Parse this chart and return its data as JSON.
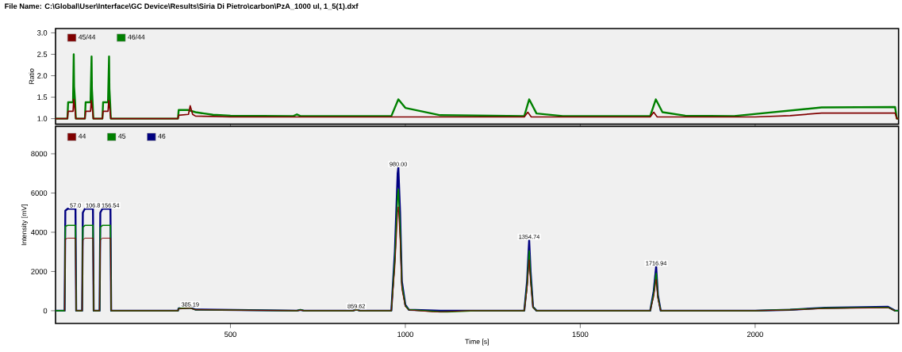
{
  "chart_data": [
    {
      "type": "line",
      "title": "File Name: C:\\Global\\User\\Interface\\GC Device\\Results\\Siria Di Pietro\\carbon\\PzA_1000 ul, 1_5(1).dxf",
      "ylabel": "Ratio",
      "xlim": [
        0,
        2410
      ],
      "xticks": [
        500,
        1000,
        1500,
        2000
      ],
      "ylim": [
        0.87,
        3.1
      ],
      "yticks": [
        {
          "value": 1,
          "label": "1.0"
        },
        {
          "value": 1.5,
          "label": "1.5"
        },
        {
          "value": 2,
          "label": "2.0"
        },
        {
          "value": 2.5,
          "label": "2.5"
        },
        {
          "value": 3,
          "label": "3.0"
        }
      ],
      "tick_labels": "y",
      "legend": "top left",
      "grid": false,
      "series": [
        {
          "name": "45/44",
          "color": "#800000",
          "x": [
            0,
            34,
            36,
            50,
            52,
            56,
            58,
            84,
            86,
            100,
            102,
            106,
            108,
            134,
            136,
            150,
            152,
            156,
            158,
            350,
            352,
            380,
            385,
            392,
            400,
            450,
            500,
            1000,
            1010,
            1340,
            1350,
            1360,
            1700,
            1710,
            1720,
            2000,
            2100,
            2190,
            2400,
            2405,
            2410
          ],
          "values": [
            1.0,
            1.0,
            1.17,
            1.17,
            1.45,
            1.17,
            1.0,
            1.0,
            1.17,
            1.17,
            1.42,
            1.17,
            1.0,
            1.0,
            1.17,
            1.17,
            1.42,
            1.17,
            1.0,
            1.0,
            1.08,
            1.1,
            1.3,
            1.1,
            1.06,
            1.05,
            1.04,
            1.04,
            1.04,
            1.04,
            1.15,
            1.04,
            1.04,
            1.15,
            1.04,
            1.04,
            1.07,
            1.13,
            1.13,
            1.0,
            1.0
          ]
        },
        {
          "name": "46/44",
          "color": "#008000",
          "x": [
            0,
            34,
            36,
            50,
            52,
            53,
            56,
            58,
            84,
            86,
            100,
            103,
            104,
            106,
            108,
            134,
            136,
            150,
            153,
            154,
            156,
            158,
            350,
            352,
            380,
            400,
            450,
            500,
            680,
            690,
            700,
            960,
            980,
            1000,
            1100,
            1340,
            1354,
            1375,
            1450,
            1700,
            1716,
            1735,
            1800,
            1940,
            2190,
            2400,
            2405,
            2410
          ],
          "values": [
            1.0,
            1.0,
            1.38,
            1.38,
            2.5,
            1.75,
            1.38,
            1.0,
            1.0,
            1.38,
            1.38,
            2.45,
            1.7,
            1.38,
            1.0,
            1.0,
            1.38,
            1.38,
            2.45,
            1.7,
            1.38,
            1.0,
            1.0,
            1.2,
            1.2,
            1.15,
            1.09,
            1.07,
            1.06,
            1.1,
            1.06,
            1.06,
            1.45,
            1.25,
            1.08,
            1.06,
            1.45,
            1.12,
            1.06,
            1.06,
            1.45,
            1.15,
            1.07,
            1.06,
            1.26,
            1.27,
            1.0,
            1.0
          ]
        }
      ]
    },
    {
      "type": "line",
      "xlabel": "Time [s]",
      "ylabel": "Intensity [mV]",
      "xlim": [
        0,
        2410
      ],
      "xticks": [
        500,
        1000,
        1500,
        2000
      ],
      "ylim": [
        -650,
        9400
      ],
      "yticks": [
        0,
        2000,
        4000,
        6000,
        8000
      ],
      "legend": "top left",
      "grid": false,
      "annotations": [
        {
          "text": "57.0",
          "x": 57,
          "y": 5200
        },
        {
          "text": "106.8",
          "x": 107,
          "y": 5200
        },
        {
          "text": "156.54",
          "x": 157,
          "y": 5200
        },
        {
          "text": "385.19",
          "x": 385,
          "y": 150
        },
        {
          "text": "859.62",
          "x": 860,
          "y": 60
        },
        {
          "text": "980.00",
          "x": 980,
          "y": 7300
        },
        {
          "text": "1354.74",
          "x": 1354,
          "y": 3600
        },
        {
          "text": "1716.94",
          "x": 1717,
          "y": 2250
        }
      ],
      "series": [
        {
          "name": "44",
          "color": "#800000",
          "x": [
            26,
            28,
            35,
            57,
            59,
            76,
            78,
            84,
            107,
            109,
            126,
            128,
            134,
            157,
            159,
            350,
            352,
            385,
            400,
            690,
            700,
            710,
            850,
            860,
            870,
            960,
            970,
            978,
            980,
            985,
            990,
            1000,
            1010,
            1080,
            1100,
            1180,
            1340,
            1348,
            1354,
            1358,
            1365,
            1375,
            1700,
            1710,
            1717,
            1722,
            1730,
            2000,
            2100,
            2200,
            2380,
            2400
          ],
          "values": [
            0,
            3650,
            3700,
            3700,
            0,
            0,
            3600,
            3700,
            3700,
            0,
            0,
            3600,
            3700,
            3700,
            0,
            0,
            100,
            130,
            50,
            0,
            30,
            0,
            0,
            50,
            0,
            0,
            2200,
            5000,
            5300,
            3600,
            1100,
            200,
            40,
            -60,
            -60,
            0,
            0,
            1100,
            2600,
            1400,
            150,
            0,
            0,
            700,
            1600,
            600,
            0,
            0,
            40,
            110,
            150,
            0
          ]
        },
        {
          "name": "45",
          "color": "#008000",
          "x": [
            0,
            26,
            28,
            35,
            57,
            59,
            76,
            78,
            84,
            107,
            109,
            126,
            128,
            134,
            157,
            159,
            350,
            352,
            385,
            400,
            690,
            700,
            710,
            850,
            860,
            870,
            960,
            970,
            978,
            980,
            985,
            990,
            1000,
            1010,
            1100,
            1120,
            1200,
            1340,
            1348,
            1354,
            1358,
            1365,
            1375,
            1700,
            1710,
            1717,
            1722,
            1730,
            2000,
            2100,
            2200,
            2380,
            2400,
            2410
          ],
          "values": [
            0,
            0,
            4300,
            4350,
            4350,
            0,
            0,
            4250,
            4350,
            4350,
            0,
            0,
            4250,
            4350,
            4350,
            0,
            0,
            110,
            140,
            50,
            0,
            40,
            0,
            0,
            50,
            0,
            0,
            2600,
            5900,
            6200,
            4200,
            1300,
            250,
            50,
            -60,
            -60,
            0,
            0,
            1300,
            3050,
            1700,
            170,
            0,
            0,
            850,
            1900,
            700,
            0,
            0,
            50,
            130,
            170,
            0,
            0
          ]
        },
        {
          "name": "46",
          "color": "#000080",
          "x": [
            0,
            26,
            28,
            35,
            57,
            59,
            76,
            78,
            84,
            107,
            109,
            126,
            128,
            134,
            157,
            159,
            350,
            352,
            385,
            400,
            690,
            700,
            710,
            850,
            860,
            870,
            960,
            970,
            978,
            980,
            985,
            990,
            1000,
            1010,
            1100,
            1340,
            1348,
            1354,
            1358,
            1365,
            1375,
            1700,
            1710,
            1717,
            1722,
            1730,
            2000,
            2100,
            2200,
            2380,
            2400,
            2410
          ],
          "values": [
            0,
            0,
            5100,
            5200,
            5200,
            0,
            0,
            5000,
            5200,
            5200,
            0,
            0,
            5000,
            5200,
            5200,
            0,
            0,
            120,
            150,
            60,
            0,
            40,
            0,
            0,
            60,
            0,
            0,
            3000,
            7000,
            7300,
            5000,
            1500,
            300,
            50,
            0,
            0,
            1500,
            3600,
            2000,
            200,
            0,
            0,
            1000,
            2250,
            800,
            0,
            0,
            50,
            150,
            200,
            0,
            0
          ]
        }
      ]
    }
  ]
}
